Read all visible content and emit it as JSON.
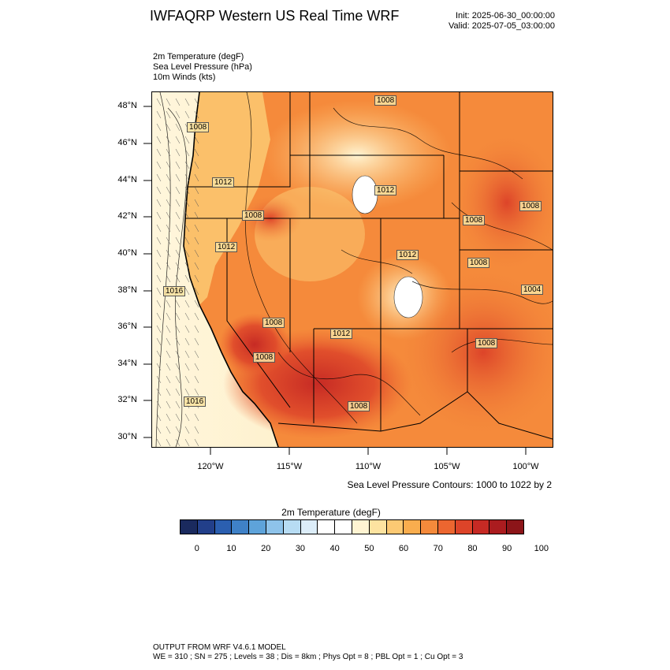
{
  "header": {
    "title": "IWFAQRP Western US Real Time WRF",
    "init": "Init: 2025-06-30_00:00:00",
    "valid": "Valid: 2025-07-05_03:00:00"
  },
  "fields": [
    "2m Temperature   (degF)",
    "Sea Level Pressure   (hPa)",
    "10m Winds   (kts)"
  ],
  "map": {
    "lat_labels": [
      "48°N",
      "46°N",
      "44°N",
      "42°N",
      "40°N",
      "38°N",
      "36°N",
      "34°N",
      "32°N",
      "30°N"
    ],
    "lon_labels": [
      "120°W",
      "115°W",
      "110°W",
      "105°W",
      "100°W"
    ],
    "lat_range": [
      29.5,
      48.8
    ],
    "lon_range": [
      -123.7,
      -98.4
    ],
    "isobar_labels": [
      "1008",
      "1008",
      "1012",
      "1012",
      "1008",
      "1008",
      "1008",
      "1012",
      "1012",
      "1016",
      "1008",
      "1008",
      "1012",
      "1008",
      "1004",
      "1008",
      "1008",
      "1016"
    ]
  },
  "slp_note": "Sea Level Pressure Contours: 1000 to 1022 by 2",
  "colorbar": {
    "title": "2m Temperature  (degF)",
    "ticks": [
      "0",
      "10",
      "20",
      "30",
      "40",
      "50",
      "60",
      "70",
      "80",
      "90",
      "100"
    ],
    "colors": [
      "#1a2a5e",
      "#223f8a",
      "#2b5fb0",
      "#3f81c7",
      "#5ea3da",
      "#8ec3ea",
      "#b7dcf3",
      "#dcedf9",
      "#ffffff",
      "#ffffff",
      "#fff4d2",
      "#fde3a0",
      "#fcc973",
      "#f9ad4e",
      "#f58a3b",
      "#ec6630",
      "#dd4429",
      "#c62a24",
      "#ab1c1f",
      "#8c1519"
    ]
  },
  "footer": {
    "line1": "OUTPUT FROM WRF V4.6.1 MODEL",
    "line2": "WE = 310 ; SN = 275 ; Levels = 38 ; Dis = 8km ; Phys Opt = 8 ; PBL Opt = 1 ; Cu Opt = 3"
  }
}
